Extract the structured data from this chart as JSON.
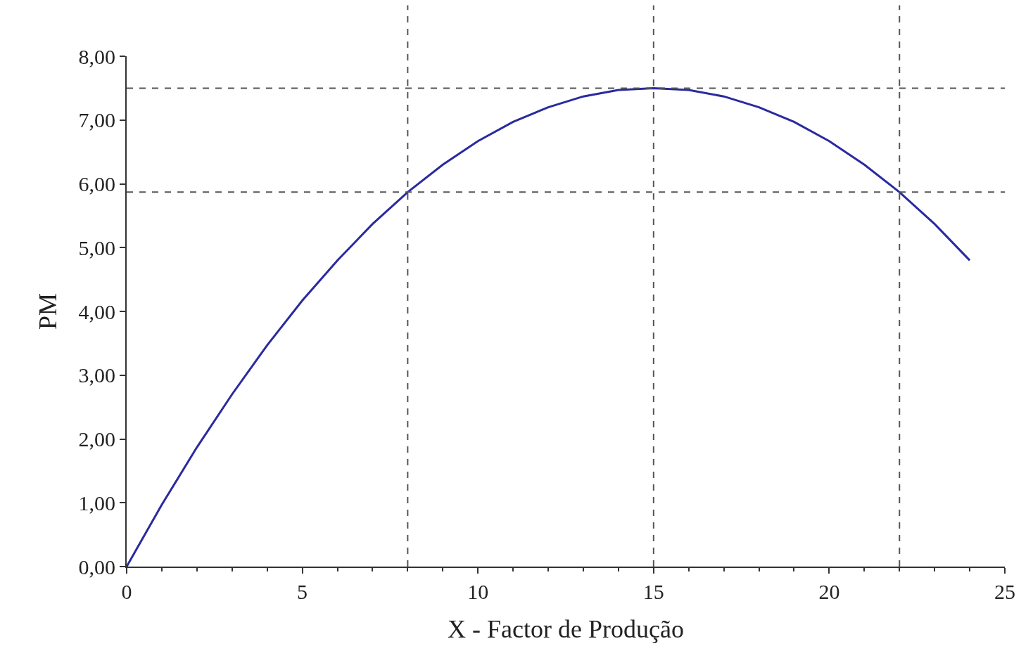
{
  "chart_data": {
    "type": "line",
    "xlabel": "X - Factor de Produção",
    "ylabel": "PM",
    "x": [
      0,
      1,
      2,
      3,
      4,
      5,
      6,
      7,
      8,
      9,
      10,
      11,
      12,
      13,
      14,
      15,
      16,
      17,
      18,
      19,
      20,
      21,
      22,
      23,
      24
    ],
    "series": [
      {
        "color": "#2a2aa0",
        "values": [
          0,
          0.97,
          1.87,
          2.7,
          3.47,
          4.17,
          4.8,
          5.37,
          5.87,
          6.3,
          6.67,
          6.97,
          7.2,
          7.37,
          7.47,
          7.5,
          7.47,
          7.37,
          7.2,
          6.97,
          6.67,
          6.3,
          5.87,
          5.37,
          4.8
        ]
      }
    ],
    "xlim": [
      0,
      25
    ],
    "xticks": [
      0,
      5,
      10,
      15,
      20,
      25
    ],
    "ylim": [
      0,
      8
    ],
    "yticks": [
      {
        "value": 0,
        "label": "0,00"
      },
      {
        "value": 1,
        "label": "1,00"
      },
      {
        "value": 2,
        "label": "2,00"
      },
      {
        "value": 3,
        "label": "3,00"
      },
      {
        "value": 4,
        "label": "4,00"
      },
      {
        "value": 5,
        "label": "5,00"
      },
      {
        "value": 6,
        "label": "6,00"
      },
      {
        "value": 7,
        "label": "7,00"
      },
      {
        "value": 8,
        "label": "8,00"
      }
    ],
    "ref_lines": [
      {
        "axis": "x",
        "value": 8,
        "color": "#555555",
        "line_style": "dashed"
      },
      {
        "axis": "x",
        "value": 15,
        "color": "#555555",
        "line_style": "dashed"
      },
      {
        "axis": "x",
        "value": 22,
        "color": "#555555",
        "line_style": "dashed"
      },
      {
        "axis": "y",
        "value": 7.5,
        "color": "#555555",
        "line_style": "dashed"
      },
      {
        "axis": "y",
        "value": 5.87,
        "color": "#555555",
        "line_style": "dashed"
      }
    ],
    "marker": "none",
    "line_style": "solid"
  }
}
